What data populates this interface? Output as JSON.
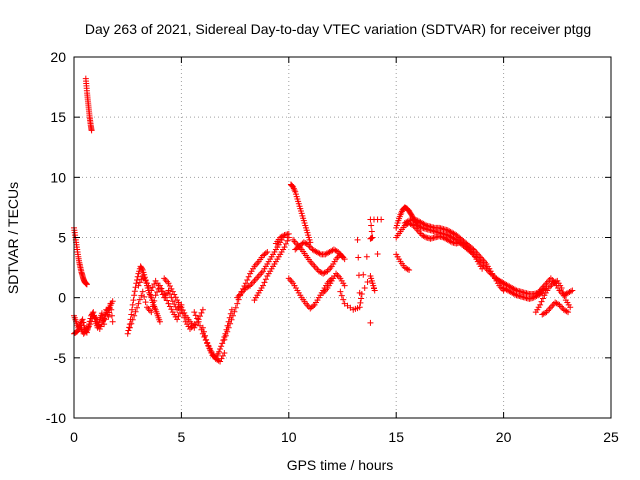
{
  "chart_data": {
    "type": "scatter",
    "title": "Day 263 of 2021, Sidereal Day-to-day VTEC variation (SDTVAR) for receiver ptgg",
    "xlabel": "GPS time / hours",
    "ylabel": "SDTVAR / TECUs",
    "xlim": [
      0,
      25
    ],
    "ylim": [
      -10,
      20
    ],
    "xticks": [
      0,
      5,
      10,
      15,
      20,
      25
    ],
    "yticks": [
      -10,
      -5,
      0,
      5,
      10,
      15,
      20
    ],
    "grid": true,
    "marker": "+",
    "marker_color": "#ff0000",
    "series": [
      {
        "name": "SDTVAR",
        "segments": [
          {
            "x": [
              0.0,
              0.05,
              0.1,
              0.15,
              0.2,
              0.25,
              0.3,
              0.35,
              0.4,
              0.45,
              0.5,
              0.55,
              0.6
            ],
            "y": [
              5.8,
              5.2,
              4.6,
              4.0,
              3.4,
              2.9,
              2.5,
              2.1,
              1.8,
              1.5,
              1.3,
              1.2,
              1.1
            ]
          },
          {
            "x": [
              0.0,
              0.1,
              0.2,
              0.3,
              0.4,
              0.5,
              0.6,
              0.7,
              0.8,
              0.9,
              1.0,
              1.1,
              1.2,
              1.3,
              1.4,
              1.5,
              1.6,
              1.7,
              1.8
            ],
            "y": [
              -1.5,
              -2.0,
              -2.5,
              -2.2,
              -1.8,
              -2.6,
              -2.9,
              -2.2,
              -1.5,
              -1.2,
              -2.0,
              -2.5,
              -1.8,
              -1.3,
              -2.2,
              -1.0,
              -1.6,
              -0.5,
              -2.0
            ]
          },
          {
            "x": [
              0.0,
              0.15,
              0.3,
              0.45,
              0.6,
              0.75,
              0.9,
              1.05,
              1.2,
              1.35,
              1.5,
              1.65,
              1.8
            ],
            "y": [
              -3.0,
              -2.8,
              -2.5,
              -3.0,
              -2.7,
              -2.2,
              -1.5,
              -1.8,
              -2.6,
              -2.0,
              -1.2,
              -0.8,
              -0.3
            ]
          },
          {
            "x": [
              0.55,
              0.58,
              0.61,
              0.64,
              0.67,
              0.7,
              0.73,
              0.76,
              0.79,
              0.82
            ],
            "y": [
              18.2,
              17.6,
              17.0,
              16.5,
              16.0,
              15.5,
              15.0,
              14.6,
              14.2,
              13.9
            ]
          },
          {
            "x": [
              2.5,
              2.6,
              2.7,
              2.8,
              2.9,
              3.0,
              3.1,
              3.2,
              3.3,
              3.4,
              3.5,
              3.6,
              3.7,
              3.8,
              3.9,
              4.0
            ],
            "y": [
              -3.0,
              -2.2,
              -1.0,
              0.2,
              1.2,
              2.0,
              2.6,
              2.3,
              1.7,
              1.0,
              0.4,
              0.0,
              -0.6,
              -1.0,
              -1.5,
              -2.0
            ]
          },
          {
            "x": [
              2.6,
              2.8,
              3.0,
              3.2,
              3.4,
              3.6,
              3.8,
              4.0,
              4.2,
              4.4,
              4.6,
              4.8,
              5.0,
              5.2,
              5.4,
              5.6
            ],
            "y": [
              -2.5,
              -1.5,
              -0.5,
              0.5,
              -0.8,
              -1.2,
              0.2,
              1.0,
              0.3,
              -0.5,
              -1.2,
              -1.8,
              -1.0,
              -2.0,
              -2.6,
              -2.2
            ]
          },
          {
            "x": [
              4.2,
              4.4,
              4.6,
              4.8,
              5.0,
              5.2,
              5.4,
              5.6,
              5.8,
              6.0
            ],
            "y": [
              1.6,
              1.2,
              0.5,
              -0.2,
              -0.8,
              -1.5,
              -2.0,
              -2.5,
              -1.8,
              -1.0
            ]
          },
          {
            "x": [
              3.0,
              3.2,
              3.4,
              3.6,
              3.8,
              4.0,
              4.2,
              4.4,
              4.6,
              4.8,
              5.0
            ],
            "y": [
              1.0,
              1.8,
              1.2,
              0.6,
              1.4,
              0.8,
              0.0,
              0.6,
              -0.3,
              -1.0,
              -0.6
            ]
          },
          {
            "x": [
              5.6,
              5.8,
              6.0,
              6.2,
              6.4,
              6.6,
              6.8,
              7.0
            ],
            "y": [
              -1.2,
              -2.0,
              -3.0,
              -3.8,
              -4.5,
              -5.1,
              -5.3,
              -4.6
            ]
          },
          {
            "x": [
              6.0,
              6.15,
              6.3,
              6.45,
              6.6,
              6.75,
              6.9,
              7.05,
              7.2,
              7.35
            ],
            "y": [
              -2.5,
              -3.5,
              -4.2,
              -4.8,
              -5.0,
              -4.5,
              -3.8,
              -3.0,
              -2.0,
              -1.0
            ]
          },
          {
            "x": [
              7.0,
              7.2,
              7.4,
              7.6,
              7.8,
              8.0,
              8.2,
              8.4,
              8.6,
              8.8,
              9.0
            ],
            "y": [
              -3.5,
              -2.5,
              -1.5,
              -0.5,
              0.5,
              1.2,
              2.0,
              2.6,
              3.0,
              3.5,
              3.8
            ]
          },
          {
            "x": [
              7.6,
              7.8,
              8.0,
              8.2,
              8.4,
              8.6,
              8.8,
              9.0,
              9.2,
              9.4,
              9.6,
              9.8
            ],
            "y": [
              0.0,
              0.4,
              0.8,
              1.0,
              1.4,
              1.8,
              2.2,
              2.8,
              3.4,
              4.0,
              4.6,
              5.2
            ]
          },
          {
            "x": [
              8.4,
              8.6,
              8.8,
              9.0,
              9.2,
              9.4,
              9.6,
              9.8,
              10.0
            ],
            "y": [
              -0.2,
              0.4,
              1.0,
              1.8,
              2.4,
              3.0,
              3.6,
              4.2,
              5.0
            ]
          },
          {
            "x": [
              9.4,
              9.6,
              9.8,
              10.0
            ],
            "y": [
              4.5,
              5.0,
              5.2,
              5.3
            ]
          },
          {
            "x": [
              10.1,
              10.2,
              10.3,
              10.4,
              10.5,
              10.6,
              10.7,
              10.8,
              10.9,
              11.0
            ],
            "y": [
              9.4,
              9.2,
              8.8,
              8.2,
              7.6,
              7.0,
              6.4,
              5.8,
              5.2,
              4.6
            ]
          },
          {
            "x": [
              10.0,
              10.2,
              10.4,
              10.6,
              10.8,
              11.0,
              11.2,
              11.4,
              11.6,
              11.8,
              12.0
            ],
            "y": [
              1.6,
              1.2,
              0.6,
              0.0,
              -0.5,
              -0.9,
              -0.6,
              0.0,
              0.6,
              1.2,
              1.6
            ]
          },
          {
            "x": [
              10.2,
              10.4,
              10.6,
              10.8,
              11.0,
              11.2,
              11.4,
              11.6,
              11.8,
              12.0,
              12.2,
              12.4,
              12.6
            ],
            "y": [
              4.8,
              4.4,
              4.0,
              3.5,
              3.0,
              2.6,
              2.2,
              2.0,
              2.2,
              2.6,
              3.2,
              3.6,
              3.2
            ]
          },
          {
            "x": [
              10.3,
              10.5,
              10.7,
              10.9,
              11.1,
              11.3,
              11.5,
              11.7,
              11.9,
              12.1,
              12.3,
              12.5
            ],
            "y": [
              4.0,
              4.3,
              4.6,
              4.4,
              4.0,
              3.8,
              3.6,
              3.6,
              3.8,
              4.0,
              3.8,
              3.4
            ]
          },
          {
            "x": [
              11.6,
              11.8,
              12.0,
              12.2,
              12.4,
              12.6
            ],
            "y": [
              0.4,
              0.8,
              1.4,
              2.0,
              1.6,
              1.0
            ]
          },
          {
            "x": [
              12.4,
              12.6,
              13.0,
              13.3,
              13.4,
              13.8,
              13.9,
              14.0
            ],
            "y": [
              0.5,
              -0.5,
              -1.0,
              -0.8,
              0.3,
              1.8,
              1.2,
              0.6
            ]
          },
          {
            "x": [
              13.2,
              13.3,
              13.8,
              13.9,
              13.8,
              14.3,
              13.8
            ],
            "y": [
              4.8,
              0.4,
              4.9,
              5.0,
              6.5,
              6.5,
              -2.1
            ]
          },
          {
            "x": [
              15.0,
              15.1,
              15.2,
              15.3,
              15.4,
              15.5,
              15.6,
              15.7,
              15.8,
              15.9,
              16.0,
              16.2,
              16.4,
              16.6,
              16.8,
              17.0,
              17.2,
              17.4,
              17.6,
              17.8,
              18.0,
              18.2,
              18.4,
              18.6,
              18.8,
              19.0,
              19.2,
              19.4,
              19.6,
              19.8,
              20.0
            ],
            "y": [
              5.8,
              6.4,
              6.9,
              7.3,
              7.5,
              7.4,
              7.2,
              6.9,
              6.6,
              6.3,
              6.0,
              5.8,
              5.7,
              5.6,
              5.5,
              5.4,
              5.3,
              5.2,
              5.0,
              4.8,
              4.5,
              4.2,
              3.9,
              3.6,
              3.2,
              2.8,
              2.4,
              2.0,
              1.7,
              1.4,
              1.2
            ]
          },
          {
            "x": [
              15.0,
              15.2,
              15.4,
              15.6,
              15.8,
              16.0,
              16.2,
              16.4,
              16.6,
              16.8,
              17.0,
              17.2,
              17.4,
              17.6,
              17.8,
              18.0,
              18.2,
              18.4,
              18.6,
              18.8,
              19.0
            ],
            "y": [
              5.0,
              5.5,
              6.0,
              6.2,
              6.0,
              5.6,
              5.2,
              5.0,
              4.9,
              5.0,
              5.1,
              5.0,
              4.8,
              4.6,
              4.5,
              4.6,
              4.4,
              4.0,
              3.6,
              3.0,
              2.4
            ]
          },
          {
            "x": [
              15.0,
              15.2,
              15.4,
              15.6
            ],
            "y": [
              3.6,
              3.0,
              2.5,
              2.3
            ]
          },
          {
            "x": [
              15.4,
              15.6,
              15.8,
              16.0,
              16.2,
              16.4,
              16.6,
              16.8,
              17.0,
              17.2,
              17.4,
              17.6,
              17.8,
              18.0,
              18.2,
              18.4,
              18.6,
              18.8,
              19.0,
              19.2,
              19.4,
              19.6,
              19.8,
              20.0
            ],
            "y": [
              6.2,
              6.4,
              6.5,
              6.4,
              6.2,
              6.0,
              5.9,
              5.8,
              5.8,
              5.7,
              5.6,
              5.4,
              5.2,
              4.9,
              4.6,
              4.3,
              4.0,
              3.6,
              3.2,
              2.8,
              2.2,
              1.6,
              1.0,
              0.6
            ]
          },
          {
            "x": [
              19.6,
              19.8,
              20.0,
              20.2,
              20.4,
              20.6,
              20.8,
              21.0,
              21.2,
              21.4,
              21.6,
              21.8,
              22.0
            ],
            "y": [
              1.6,
              1.4,
              1.2,
              1.0,
              0.8,
              0.6,
              0.5,
              0.4,
              0.3,
              0.3,
              0.4,
              0.6,
              0.8
            ]
          },
          {
            "x": [
              20.0,
              20.2,
              20.4,
              20.6,
              20.8,
              21.0,
              21.2,
              21.4,
              21.6,
              21.8
            ],
            "y": [
              0.8,
              0.6,
              0.4,
              0.2,
              0.1,
              0.0,
              -0.1,
              0.0,
              0.2,
              0.4
            ]
          },
          {
            "x": [
              21.5,
              21.7,
              21.9,
              22.1,
              22.3,
              22.5,
              22.7,
              22.9,
              23.1
            ],
            "y": [
              -1.2,
              -0.6,
              0.2,
              0.8,
              1.2,
              1.4,
              0.8,
              -0.2,
              -0.8
            ]
          },
          {
            "x": [
              21.6,
              21.8,
              22.0,
              22.2,
              22.4,
              22.6,
              22.8,
              23.0,
              23.2
            ],
            "y": [
              0.4,
              0.8,
              1.2,
              1.6,
              1.2,
              0.6,
              0.2,
              0.4,
              0.6
            ]
          },
          {
            "x": [
              21.8,
              22.0,
              22.2,
              22.4,
              22.6,
              22.8,
              23.0
            ],
            "y": [
              -1.4,
              -1.2,
              -0.8,
              -0.4,
              -0.6,
              -1.0,
              -1.2
            ]
          }
        ]
      }
    ]
  }
}
